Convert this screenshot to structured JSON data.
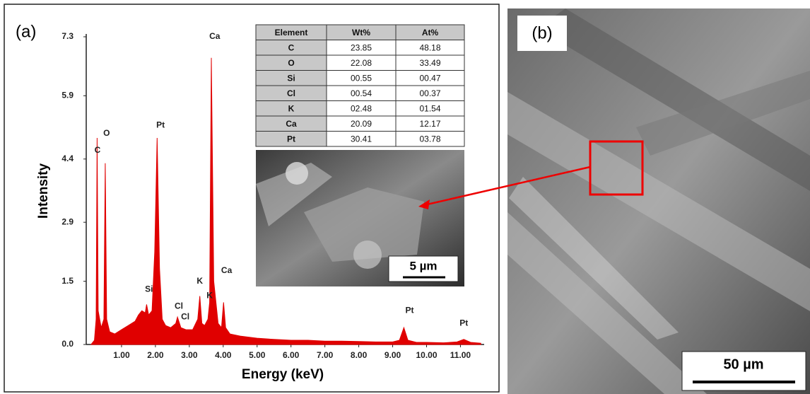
{
  "panels": {
    "a": "(a)",
    "b": "(b)"
  },
  "scale_bars": [
    "5 µm",
    "50 µm"
  ],
  "table": {
    "header": [
      "Element",
      "Wt%",
      "At%"
    ],
    "rows": [
      [
        "C",
        "23.85",
        "48.18"
      ],
      [
        "O",
        "22.08",
        "33.49"
      ],
      [
        "Si",
        "00.55",
        "00.47"
      ],
      [
        "Cl",
        "00.54",
        "00.37"
      ],
      [
        "K",
        "02.48",
        "01.54"
      ],
      [
        "Ca",
        "20.09",
        "12.17"
      ],
      [
        "Pt",
        "30.41",
        "03.78"
      ]
    ]
  },
  "chart_data": {
    "type": "area",
    "x_label": "Energy (keV)",
    "y_label": "Intensity",
    "color": "#e00000",
    "x": [
      0.1,
      0.2,
      0.25,
      0.28,
      0.31,
      0.4,
      0.48,
      0.52,
      0.56,
      0.65,
      0.8,
      1.0,
      1.2,
      1.4,
      1.5,
      1.6,
      1.7,
      1.74,
      1.8,
      1.9,
      1.98,
      2.05,
      2.12,
      2.2,
      2.3,
      2.45,
      2.6,
      2.65,
      2.75,
      2.9,
      3.1,
      3.25,
      3.31,
      3.37,
      3.45,
      3.55,
      3.6,
      3.65,
      3.72,
      3.85,
      3.95,
      4.01,
      4.07,
      4.2,
      4.5,
      5.0,
      5.5,
      6.0,
      6.5,
      7.0,
      7.5,
      8.0,
      8.5,
      9.0,
      9.2,
      9.33,
      9.45,
      9.7,
      10.0,
      10.5,
      10.9,
      11.1,
      11.3,
      11.6
    ],
    "values": [
      0,
      0.1,
      0.6,
      4.9,
      0.8,
      0.4,
      0.6,
      4.3,
      0.6,
      0.3,
      0.25,
      0.35,
      0.45,
      0.55,
      0.7,
      0.8,
      0.75,
      0.95,
      0.7,
      0.8,
      2.2,
      4.9,
      1.8,
      0.6,
      0.45,
      0.4,
      0.5,
      0.65,
      0.4,
      0.35,
      0.35,
      0.6,
      1.15,
      0.5,
      0.45,
      0.6,
      1.0,
      6.8,
      1.5,
      0.5,
      0.4,
      1.0,
      0.4,
      0.25,
      0.2,
      0.15,
      0.12,
      0.1,
      0.1,
      0.08,
      0.08,
      0.07,
      0.06,
      0.06,
      0.1,
      0.4,
      0.1,
      0.05,
      0.05,
      0.04,
      0.06,
      0.12,
      0.05,
      0.03
    ],
    "xlim": [
      0,
      11.7
    ],
    "ylim": [
      0,
      7.3
    ],
    "xticks": [
      {
        "value": 1,
        "label": "1.00"
      },
      {
        "value": 2,
        "label": "2.00"
      },
      {
        "value": 3,
        "label": "3.00"
      },
      {
        "value": 4,
        "label": "4.00"
      },
      {
        "value": 5,
        "label": "5.00"
      },
      {
        "value": 6,
        "label": "6.00"
      },
      {
        "value": 7,
        "label": "7.00"
      },
      {
        "value": 8,
        "label": "8.00"
      },
      {
        "value": 9,
        "label": "9.00"
      },
      {
        "value": 10,
        "label": "10.00"
      },
      {
        "value": 11,
        "label": "11.00"
      }
    ],
    "yticks": [
      {
        "value": 0,
        "label": "0.0"
      },
      1.5,
      2.9,
      4.4,
      5.9,
      7.3
    ],
    "annotations": [
      {
        "text": "C",
        "x": 0.29,
        "y": 4.6
      },
      {
        "text": "O",
        "x": 0.56,
        "y": 5.0
      },
      {
        "text": "Pt",
        "x": 2.15,
        "y": 5.2
      },
      {
        "text": "Ca",
        "x": 3.75,
        "y": 7.3
      },
      {
        "text": "Si",
        "x": 1.81,
        "y": 1.3
      },
      {
        "text": "Cl",
        "x": 2.69,
        "y": 0.9
      },
      {
        "text": "Cl",
        "x": 2.88,
        "y": 0.65
      },
      {
        "text": "K",
        "x": 3.31,
        "y": 1.5
      },
      {
        "text": "K",
        "x": 3.6,
        "y": 1.15
      },
      {
        "text": "Ca",
        "x": 4.1,
        "y": 1.75
      },
      {
        "text": "Pt",
        "x": 9.5,
        "y": 0.8
      },
      {
        "text": "Pt",
        "x": 11.1,
        "y": 0.5
      }
    ]
  }
}
